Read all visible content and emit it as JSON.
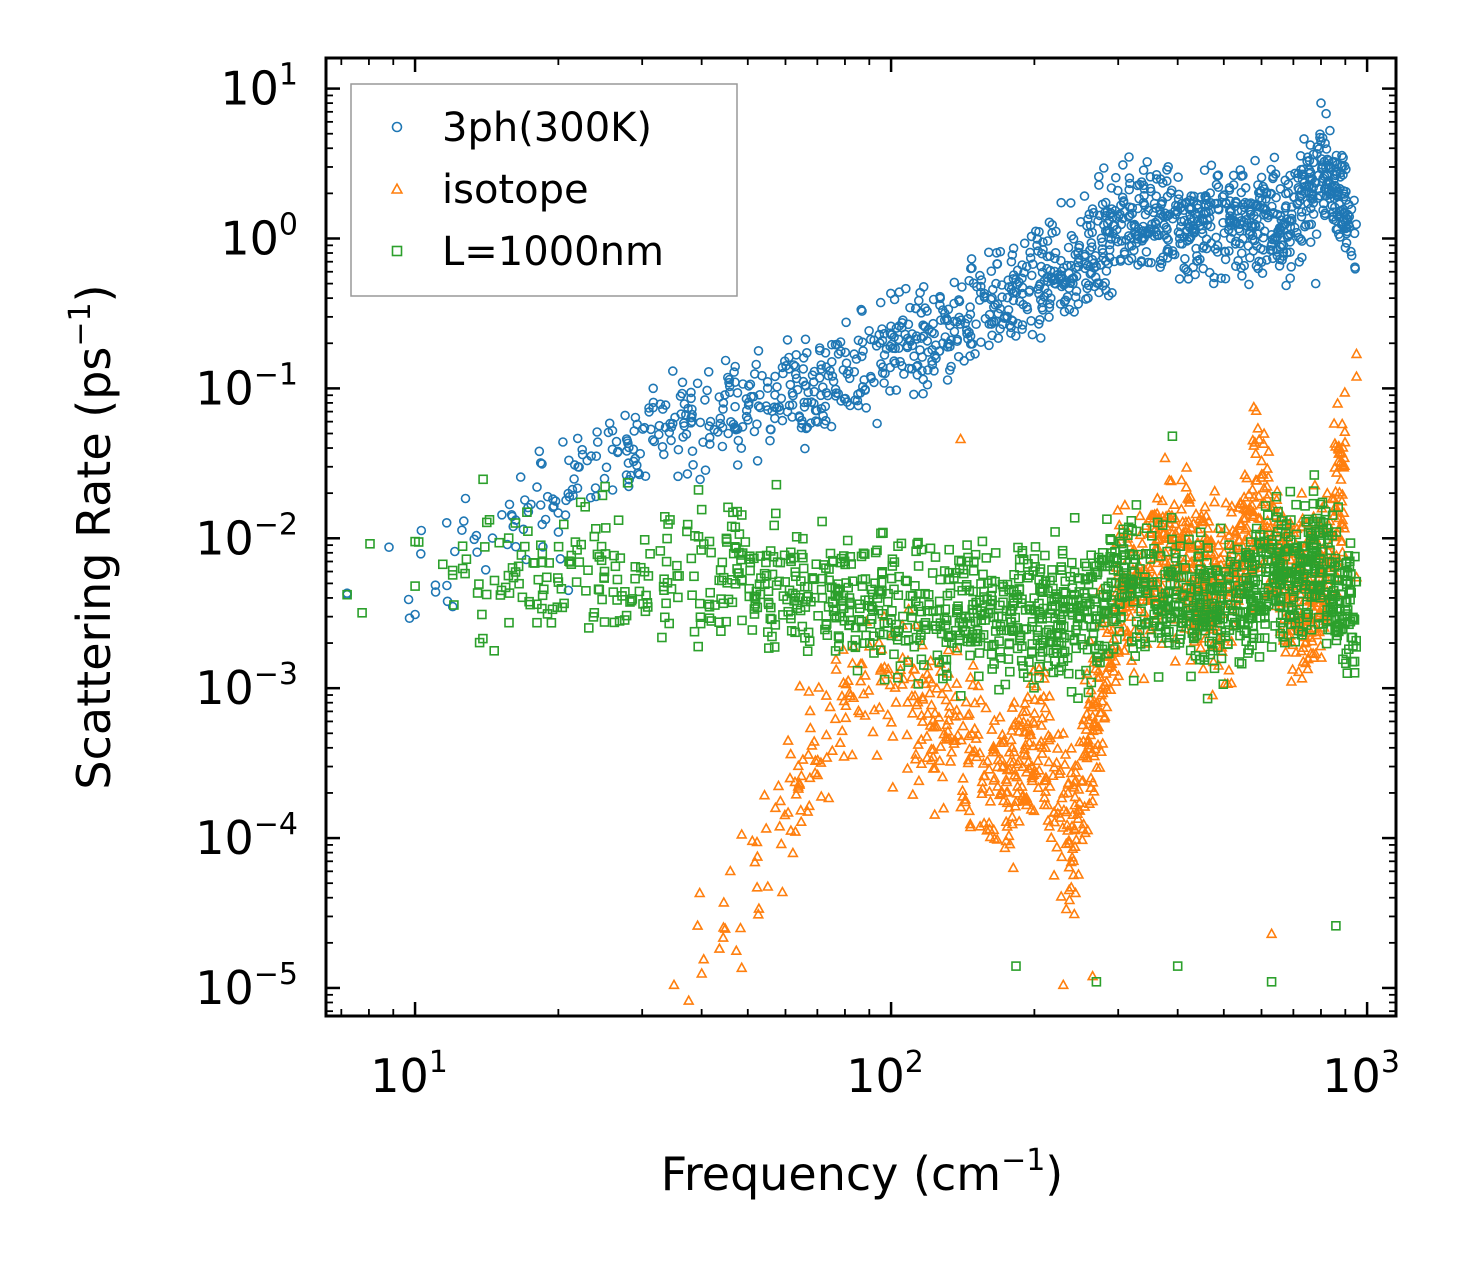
{
  "chart_data": {
    "type": "scatter",
    "xscale": "log",
    "yscale": "log",
    "xlim": [
      6.5,
      1150
    ],
    "ylim": [
      6.5e-06,
      16
    ],
    "xlabel": "Frequency (cm",
    "xlabel_sup": "−1",
    "xlabel_end": ")",
    "ylabel": "Scattering Rate (ps",
    "ylabel_sup": "−1",
    "ylabel_end": ")",
    "x_ticks": [
      {
        "value": 10,
        "base": "10",
        "exp": "1"
      },
      {
        "value": 100,
        "base": "10",
        "exp": "2"
      },
      {
        "value": 1000,
        "base": "10",
        "exp": "3"
      }
    ],
    "y_ticks": [
      {
        "value": 10,
        "base": "10",
        "exp": "1"
      },
      {
        "value": 1,
        "base": "10",
        "exp": "0"
      },
      {
        "value": 0.1,
        "base": "10",
        "exp": "−1"
      },
      {
        "value": 0.01,
        "base": "10",
        "exp": "−2"
      },
      {
        "value": 0.001,
        "base": "10",
        "exp": "−3"
      },
      {
        "value": 0.0001,
        "base": "10",
        "exp": "−4"
      },
      {
        "value": 1e-05,
        "base": "10",
        "exp": "−5"
      }
    ],
    "legend_position": "top-left",
    "series": [
      {
        "name": "3ph(300K)",
        "marker": "circle",
        "color": "#1f77b4",
        "trend": [
          [
            7.2,
            0.0043
          ],
          [
            10,
            0.006
          ],
          [
            15,
            0.013
          ],
          [
            20,
            0.022
          ],
          [
            30,
            0.045
          ],
          [
            45,
            0.07
          ],
          [
            70,
            0.1
          ],
          [
            100,
            0.17
          ],
          [
            150,
            0.3
          ],
          [
            200,
            0.5
          ],
          [
            260,
            0.75
          ],
          [
            300,
            1.4
          ],
          [
            400,
            1.2
          ],
          [
            550,
            1.3
          ],
          [
            700,
            1.4
          ],
          [
            800,
            3.0
          ],
          [
            900,
            1.5
          ],
          [
            950,
            0.9
          ]
        ],
        "points": [
          [
            7.2,
            0.0043
          ],
          [
            7.2,
            0.0042
          ],
          [
            10,
            0.0031
          ],
          [
            11.7,
            0.0038
          ],
          [
            12,
            0.0035
          ],
          [
            16,
            0.014
          ],
          [
            17,
            0.018
          ],
          [
            17.3,
            0.015
          ],
          [
            20,
            0.011
          ],
          [
            20.2,
            0.0073
          ],
          [
            21,
            0.0045
          ],
          [
            22,
            0.03
          ],
          [
            23,
            0.033
          ],
          [
            24,
            0.019
          ],
          [
            25,
            0.025
          ],
          [
            26,
            0.021
          ],
          [
            28,
            0.043
          ],
          [
            29,
            0.034
          ],
          [
            31,
            0.074
          ],
          [
            38,
            0.094
          ],
          [
            47,
            0.11
          ],
          [
            800,
            8.0
          ],
          [
            820,
            6.8
          ],
          [
            760,
            4.2
          ],
          [
            780,
            0.5
          ]
        ]
      },
      {
        "name": "isotope",
        "marker": "triangle",
        "color": "#ff7f0e",
        "trend": [
          [
            35,
            1e-05
          ],
          [
            45,
            3e-05
          ],
          [
            60,
            0.00015
          ],
          [
            80,
            0.0008
          ],
          [
            100,
            0.0009
          ],
          [
            130,
            0.0006
          ],
          [
            170,
            0.0002
          ],
          [
            200,
            0.0005
          ],
          [
            240,
            0.0001
          ],
          [
            300,
            0.004
          ],
          [
            400,
            0.008
          ],
          [
            500,
            0.004
          ],
          [
            600,
            0.02
          ],
          [
            700,
            0.004
          ],
          [
            800,
            0.005
          ],
          [
            900,
            0.03
          ]
        ],
        "points": [
          [
            35,
            1.05e-05
          ],
          [
            40,
            1.25e-05
          ],
          [
            140,
            0.046
          ],
          [
            950,
            0.17
          ],
          [
            950,
            0.12
          ],
          [
            230,
            1.05e-05
          ],
          [
            630,
            2.3e-05
          ],
          [
            950,
            0.0055
          ],
          [
            265,
            1.2e-05
          ]
        ]
      },
      {
        "name": "L=1000nm",
        "marker": "square",
        "color": "#2ca02c",
        "trend": [
          [
            7.2,
            0.0043
          ],
          [
            10,
            0.005
          ],
          [
            12,
            0.006
          ],
          [
            17,
            0.007
          ],
          [
            25,
            0.0058
          ],
          [
            40,
            0.0058
          ],
          [
            60,
            0.005
          ],
          [
            80,
            0.004
          ],
          [
            100,
            0.0035
          ],
          [
            150,
            0.003
          ],
          [
            200,
            0.0035
          ],
          [
            250,
            0.003
          ],
          [
            300,
            0.005
          ],
          [
            400,
            0.004
          ],
          [
            500,
            0.0035
          ],
          [
            600,
            0.005
          ],
          [
            700,
            0.006
          ],
          [
            800,
            0.007
          ],
          [
            950,
            0.003
          ]
        ],
        "points": [
          [
            7.2,
            0.0042
          ],
          [
            10,
            0.0048
          ],
          [
            12,
            0.0057
          ],
          [
            12,
            0.0061
          ],
          [
            15.5,
            0.0047
          ],
          [
            16.5,
            0.0065
          ],
          [
            17,
            0.0088
          ],
          [
            20,
            0.0051
          ],
          [
            390,
            0.048
          ],
          [
            183,
            1.4e-05
          ],
          [
            270,
            1.1e-05
          ],
          [
            400,
            1.4e-05
          ],
          [
            630,
            1.1e-05
          ],
          [
            860,
            2.6e-05
          ],
          [
            25,
            0.006
          ]
        ]
      }
    ]
  }
}
